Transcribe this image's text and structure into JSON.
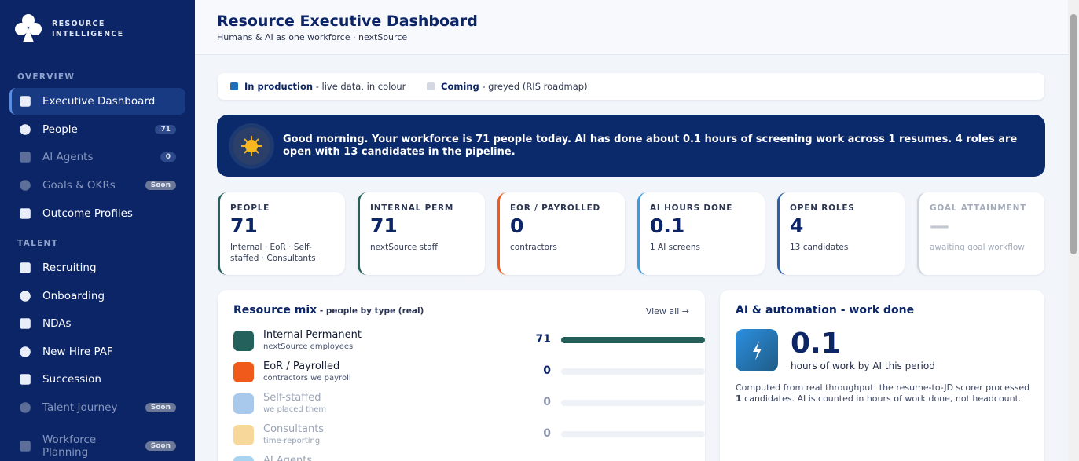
{
  "brand": {
    "line1": "RESOURCE",
    "line2": "INTELLIGENCE"
  },
  "sidebar": {
    "sections": [
      {
        "title": "OVERVIEW",
        "items": [
          {
            "label": "Executive Dashboard"
          },
          {
            "label": "People",
            "badge": "71"
          },
          {
            "label": "AI Agents",
            "badge": "0"
          },
          {
            "label": "Goals & OKRs",
            "badge": "Soon"
          },
          {
            "label": "Outcome Profiles"
          }
        ]
      },
      {
        "title": "TALENT",
        "items": [
          {
            "label": "Recruiting"
          },
          {
            "label": "Onboarding"
          },
          {
            "label": "NDAs"
          },
          {
            "label": "New Hire PAF"
          },
          {
            "label": "Succession"
          },
          {
            "label": "Talent Journey",
            "badge": "Soon"
          },
          {
            "label": "Workforce Planning",
            "badge": "Soon"
          }
        ]
      }
    ]
  },
  "header": {
    "title": "Resource Executive Dashboard",
    "subtitle": "Humans & AI as one workforce · nextSource"
  },
  "legend": {
    "items": [
      {
        "strong": "In production",
        "text": " - live data, in colour"
      },
      {
        "strong": "Coming",
        "text": " - greyed (RIS roadmap)"
      }
    ]
  },
  "banner": {
    "strong": "Good morning.",
    "text": " Your workforce is 71 people today. AI has done about 0.1 hours of screening work across 1 resumes. 4 roles are open with 13 candidates in the pipeline."
  },
  "kpis": [
    {
      "label": "PEOPLE",
      "value": 71,
      "sub": "Internal · EoR · Self-staffed · Consultants"
    },
    {
      "label": "INTERNAL PERM",
      "value": 71,
      "sub": "nextSource staff"
    },
    {
      "label": "EOR / PAYROLLED",
      "value": 0,
      "sub": "contractors"
    },
    {
      "label": "AI HOURS DONE",
      "value": 0.1,
      "sub": "1 AI screens"
    },
    {
      "label": "OPEN ROLES",
      "value": 4,
      "sub": "13 candidates"
    },
    {
      "label": "GOAL ATTAINMENT",
      "value": "—",
      "sub": "awaiting goal workflow"
    }
  ],
  "resource_mix": {
    "title": "Resource mix",
    "subtitle": " - people by type (real)",
    "link": "View all →",
    "rows": [
      {
        "name": "Internal Permanent",
        "desc": "nextSource employees",
        "value": 71
      },
      {
        "name": "EoR / Payrolled",
        "desc": "contractors we payroll",
        "value": 0
      },
      {
        "name": "Self-staffed",
        "desc": "we placed them",
        "value": 0
      },
      {
        "name": "Consultants",
        "desc": "time-reporting",
        "value": 0
      },
      {
        "name": "AI Agents"
      }
    ]
  },
  "ai_panel": {
    "title": "AI & automation - work done",
    "value": 0.1,
    "unit": "hours of work by AI this period",
    "note_before": "Computed from real throughput: the resume-to-JD scorer processed ",
    "note_strong": "1",
    "note_after": " candidates. AI is counted in hours of work done, not headcount."
  }
}
